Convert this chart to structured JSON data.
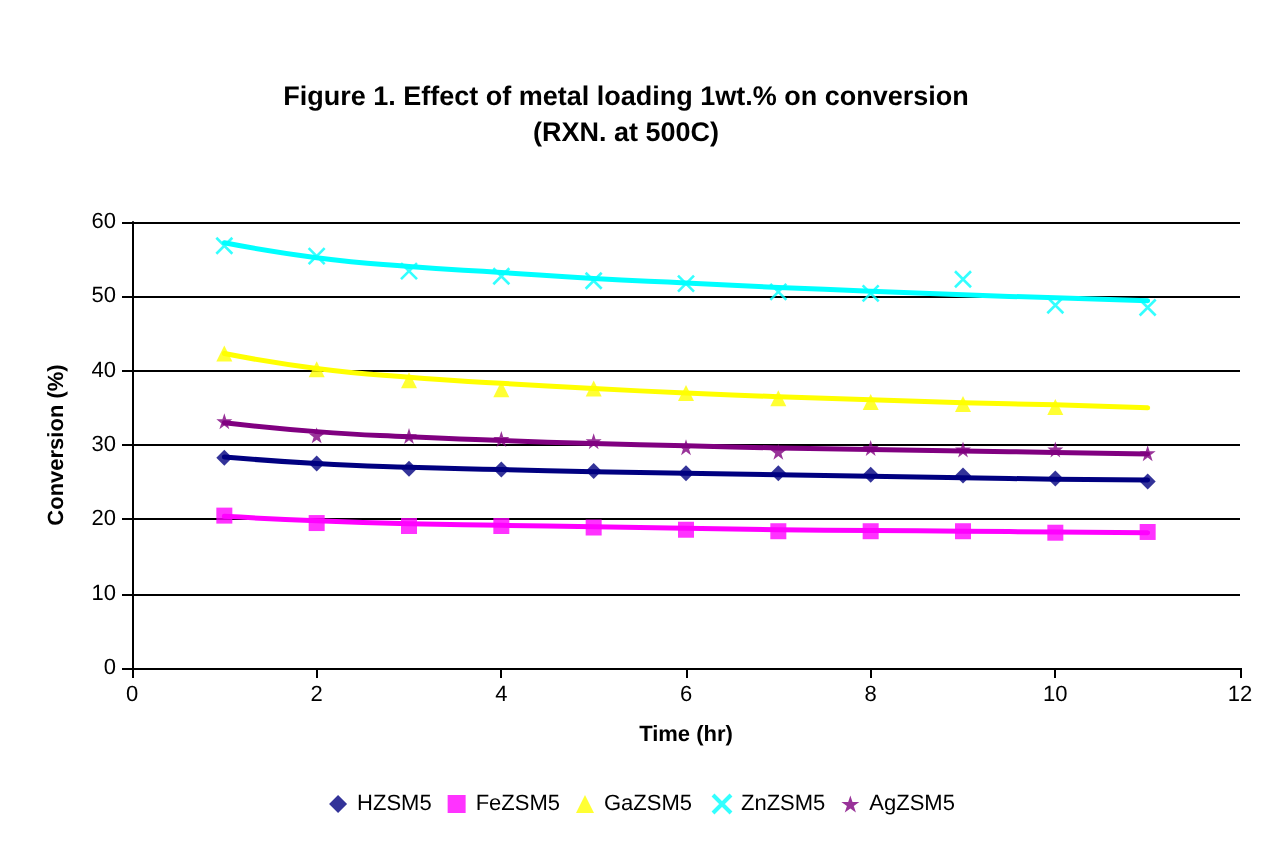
{
  "chart_data": {
    "type": "scatter",
    "title": "Figure 1. Effect of metal loading 1wt.% on conversion\n(RXN. at 500C)",
    "xlabel": "Time (hr)",
    "ylabel": "Conversion (%)",
    "x": [
      1,
      2,
      3,
      4,
      5,
      6,
      7,
      8,
      9,
      10,
      11
    ],
    "xlim": [
      0,
      12
    ],
    "xticks": [
      0,
      2,
      4,
      6,
      8,
      10,
      12
    ],
    "ylim": [
      0,
      60
    ],
    "yticks": [
      0,
      10,
      20,
      30,
      40,
      50,
      60
    ],
    "grid": "y",
    "legend": "bottom",
    "series": [
      {
        "type": "line",
        "marker": "none",
        "color": "#00ffff",
        "values": [
          57.2,
          55.2,
          54,
          53.2,
          52.4,
          51.8,
          51.2,
          50.7,
          50.2,
          49.8,
          49.4
        ]
      },
      {
        "type": "line",
        "marker": "none",
        "color": "#ffff00",
        "values": [
          42.3,
          40.3,
          39.1,
          38.3,
          37.6,
          37.0,
          36.5,
          36.1,
          35.7,
          35.4,
          35.0
        ]
      },
      {
        "type": "line",
        "marker": "none",
        "color": "#800080",
        "values": [
          33,
          31.8,
          31.1,
          30.6,
          30.2,
          29.9,
          29.6,
          29.4,
          29.2,
          29.0,
          28.8
        ]
      },
      {
        "type": "line",
        "marker": "none",
        "color": "#000080",
        "values": [
          28.4,
          27.5,
          27.0,
          26.7,
          26.4,
          26.2,
          26.0,
          25.8,
          25.6,
          25.4,
          25.3
        ]
      },
      {
        "type": "line",
        "marker": "none",
        "color": "#ff00ff",
        "values": [
          20.4,
          19.8,
          19.4,
          19.2,
          19.0,
          18.8,
          18.6,
          18.5,
          18.4,
          18.3,
          18.2
        ]
      },
      {
        "name": "HZSM5",
        "marker": "diamond",
        "color": "#000080",
        "values": [
          28.3,
          27.5,
          26.8,
          26.7,
          26.5,
          26.2,
          26.2,
          26.0,
          25.9,
          25.5,
          25.1
        ]
      },
      {
        "name": "FeZSM5",
        "marker": "square",
        "color": "#ff00ff",
        "values": [
          20.5,
          19.5,
          19.1,
          19.1,
          18.9,
          18.6,
          18.4,
          18.4,
          18.4,
          18.2,
          18.3
        ]
      },
      {
        "name": "GaZSM5",
        "marker": "triangle",
        "color": "#ffff00",
        "values": [
          42.3,
          40.2,
          38.7,
          37.5,
          37.6,
          37.0,
          36.3,
          35.8,
          35.5,
          35.1,
          null
        ]
      },
      {
        "name": "ZnZSM5",
        "marker": "cross",
        "color": "#00ffff",
        "values": [
          56.8,
          55.4,
          53.4,
          52.7,
          52.1,
          51.7,
          50.6,
          50.4,
          52.3,
          48.8,
          48.5
        ]
      },
      {
        "name": "AgZSM5",
        "marker": "star",
        "color": "#800080",
        "values": [
          33.2,
          31.3,
          31.2,
          30.8,
          30.5,
          29.7,
          29.1,
          29.6,
          29.4,
          29.4,
          28.9
        ]
      }
    ]
  }
}
